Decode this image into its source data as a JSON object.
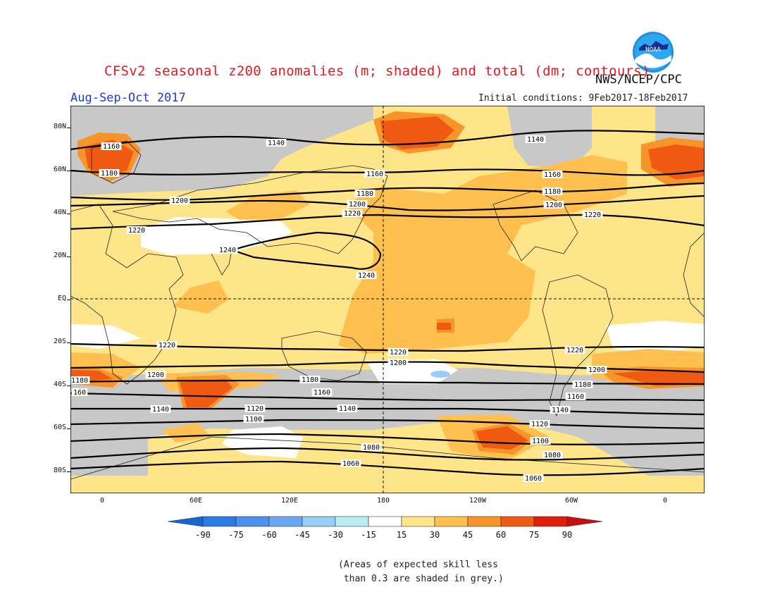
{
  "title": "CFSv2 seasonal z200 anomalies (m; shaded) and total (dm; contours)",
  "agency": "NWS/NCEP/CPC",
  "period": "Aug-Sep-Oct 2017",
  "initial_conditions": "Initial conditions: 9Feb2017-18Feb2017",
  "logo_text": "NOAA",
  "footnote": "(Areas of expected skill less\n than 0.3 are shaded in grey.)",
  "map": {
    "lat_labels": [
      "80N",
      "60N",
      "40N",
      "20N",
      "EQ",
      "20S",
      "40S",
      "60S",
      "80S"
    ],
    "lon_labels": [
      "0",
      "60E",
      "120E",
      "180",
      "120W",
      "60W",
      "0"
    ],
    "contour_labels": [
      {
        "text": "1140"
      },
      {
        "text": "1140"
      },
      {
        "text": "1160"
      },
      {
        "text": "1160"
      },
      {
        "text": "1160"
      },
      {
        "text": "1180"
      },
      {
        "text": "1180"
      },
      {
        "text": "1180"
      },
      {
        "text": "1200"
      },
      {
        "text": "1200"
      },
      {
        "text": "1200"
      },
      {
        "text": "1220"
      },
      {
        "text": "1220"
      },
      {
        "text": "1220"
      },
      {
        "text": "1240"
      },
      {
        "text": "1240"
      },
      {
        "text": "1220"
      },
      {
        "text": "1220"
      },
      {
        "text": "1220"
      },
      {
        "text": "1200"
      },
      {
        "text": "1200"
      },
      {
        "text": "1200"
      },
      {
        "text": "1180"
      },
      {
        "text": "1180"
      },
      {
        "text": "1160"
      },
      {
        "text": "1180"
      },
      {
        "text": "160"
      },
      {
        "text": "1160"
      },
      {
        "text": "1140"
      },
      {
        "text": "1140"
      },
      {
        "text": "1140"
      },
      {
        "text": "1120"
      },
      {
        "text": "1100"
      },
      {
        "text": "1120"
      },
      {
        "text": "1100"
      },
      {
        "text": "1080"
      },
      {
        "text": "1080"
      },
      {
        "text": "1060"
      },
      {
        "text": "1060"
      }
    ]
  },
  "colorbar": {
    "labels": [
      "-90",
      "-75",
      "-60",
      "-45",
      "-30",
      "-15",
      "15",
      "30",
      "45",
      "60",
      "75",
      "90"
    ],
    "colors": [
      "#1565d6",
      "#2b7be6",
      "#4a92ee",
      "#6aa9f2",
      "#97cff6",
      "#b9eef4",
      "#ffffff",
      "#ffe58a",
      "#ffc04f",
      "#f7942a",
      "#f05a13",
      "#e21c0b",
      "#c80d0d"
    ]
  },
  "colors": {
    "skill_grey": "#c8c8c8",
    "title_red": "#e0191f",
    "period_blue": "#1a3bd6"
  }
}
